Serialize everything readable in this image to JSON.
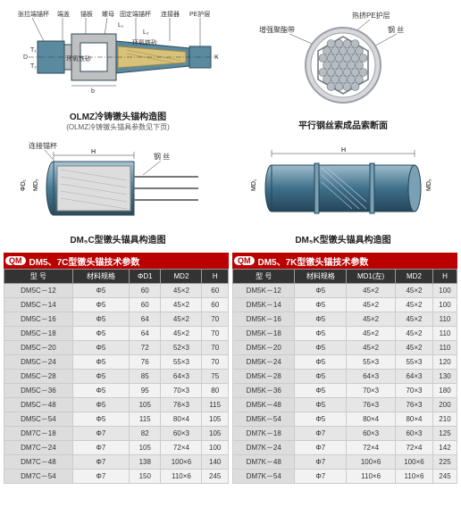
{
  "diagrams": {
    "d1": {
      "caption": "OLMZ冷铸镦头锚构造图",
      "sub": "(OLMZ冷铸镦头锚具参数见下页)",
      "labels": {
        "a": "张拉端锚杯",
        "b": "端盖",
        "c": "锚板",
        "d": "螺母",
        "e": "固定端锚杯",
        "f": "连接器",
        "g": "PE护层",
        "h": "环氧铁砂",
        "h2": "环氧铁砂"
      },
      "dims": {
        "L1": "L₁",
        "L2": "L₂",
        "D": "D",
        "T1": "T₁",
        "T2": "T₂",
        "b": "b",
        "K": "K"
      },
      "colors": {
        "body": "#5a8aa0",
        "edge": "#2d4a58",
        "sand": "#d8c27a",
        "plate": "#c0c0c0",
        "line": "#333"
      }
    },
    "d2": {
      "caption": "平行钢丝索成品索断面",
      "labels": {
        "a": "热挤PE护层",
        "b": "钢 丝",
        "c": "增强聚酯带"
      },
      "colors": {
        "outer": "#d8d8dc",
        "ring": "#9aa0a6",
        "wire": "#b5bcc2",
        "wireEdge": "#6a737b",
        "line": "#333"
      }
    },
    "d3": {
      "caption": "DM₅C型镦头锚具构造图",
      "labels": {
        "a": "连接锚杯",
        "b": "钢 丝"
      },
      "dims": {
        "H": "H",
        "phiD1": "ΦD₁",
        "MD2": "MD₂"
      },
      "colors": {
        "body": "#4a7a94",
        "bodyL": "#a9c6d4",
        "wire": "#777",
        "line": "#333"
      }
    },
    "d4": {
      "caption": "DM₅K型镦头锚具构造图",
      "dims": {
        "H": "H",
        "MD1": "MD₁",
        "MD2": "MD₂"
      },
      "colors": {
        "body": "#3f6f8a",
        "bodyL": "#9fbdce",
        "ring": "#7aa0b4",
        "line": "#333"
      }
    }
  },
  "tables": {
    "logo": "QM",
    "left": {
      "title": "DM5、7C型镦头锚技术参数",
      "cols": [
        "型 号",
        "材料规格",
        "ΦD1",
        "MD2",
        "H"
      ],
      "rows": [
        [
          "DM5C－12",
          "Φ5",
          "60",
          "45×2",
          "60"
        ],
        [
          "DM5C－14",
          "Φ5",
          "60",
          "45×2",
          "60"
        ],
        [
          "DM5C－16",
          "Φ5",
          "64",
          "45×2",
          "70"
        ],
        [
          "DM5C－18",
          "Φ5",
          "64",
          "45×2",
          "70"
        ],
        [
          "DM5C－20",
          "Φ5",
          "72",
          "52×3",
          "70"
        ],
        [
          "DM5C－24",
          "Φ5",
          "76",
          "55×3",
          "70"
        ],
        [
          "DM5C－28",
          "Φ5",
          "85",
          "64×3",
          "75"
        ],
        [
          "DM5C－36",
          "Φ5",
          "95",
          "70×3",
          "80"
        ],
        [
          "DM5C－48",
          "Φ5",
          "105",
          "76×3",
          "115"
        ],
        [
          "DM5C－54",
          "Φ5",
          "115",
          "80×4",
          "105"
        ],
        [
          "DM7C－18",
          "Φ7",
          "82",
          "60×3",
          "105"
        ],
        [
          "DM7C－24",
          "Φ7",
          "105",
          "72×4",
          "100"
        ],
        [
          "DM7C－48",
          "Φ7",
          "138",
          "100×6",
          "140"
        ],
        [
          "DM7C－54",
          "Φ7",
          "150",
          "110×6",
          "245"
        ]
      ]
    },
    "right": {
      "title": "DM5、7K型镦头锚技术参数",
      "cols": [
        "型 号",
        "材料规格",
        "MD1(左)",
        "MD2",
        "H"
      ],
      "rows": [
        [
          "DM5K－12",
          "Φ5",
          "45×2",
          "45×2",
          "100"
        ],
        [
          "DM5K－14",
          "Φ5",
          "45×2",
          "45×2",
          "100"
        ],
        [
          "DM5K－16",
          "Φ5",
          "45×2",
          "45×2",
          "110"
        ],
        [
          "DM5K－18",
          "Φ5",
          "45×2",
          "45×2",
          "110"
        ],
        [
          "DM5K－20",
          "Φ5",
          "45×2",
          "45×2",
          "110"
        ],
        [
          "DM5K－24",
          "Φ5",
          "55×3",
          "55×3",
          "120"
        ],
        [
          "DM5K－28",
          "Φ5",
          "64×3",
          "64×3",
          "130"
        ],
        [
          "DM5K－36",
          "Φ5",
          "70×3",
          "70×3",
          "180"
        ],
        [
          "DM5K－48",
          "Φ5",
          "76×3",
          "76×3",
          "200"
        ],
        [
          "DM5K－54",
          "Φ5",
          "80×4",
          "80×4",
          "210"
        ],
        [
          "DM7K－18",
          "Φ7",
          "60×3",
          "60×3",
          "125"
        ],
        [
          "DM7K－24",
          "Φ7",
          "72×4",
          "72×4",
          "142"
        ],
        [
          "DM7K－48",
          "Φ7",
          "100×6",
          "100×6",
          "225"
        ],
        [
          "DM7K－54",
          "Φ7",
          "110×6",
          "110×6",
          "245"
        ]
      ]
    }
  }
}
